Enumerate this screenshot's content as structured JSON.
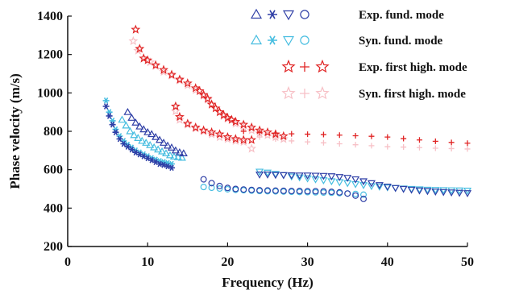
{
  "chart_data": {
    "type": "scatter",
    "xlabel": "Frequency (Hz)",
    "ylabel": "Phase velocity (m/s)",
    "xlim": [
      0,
      50
    ],
    "ylim": [
      200,
      1400
    ],
    "xticks": [
      0,
      10,
      20,
      30,
      40,
      50
    ],
    "yticks": [
      200,
      400,
      600,
      800,
      1000,
      1200,
      1400
    ],
    "grid": false,
    "legend_position": "top-right",
    "colors": {
      "exp_fund": "#2f3fa6",
      "syn_fund": "#46bde0",
      "exp_high": "#e02424",
      "syn_high": "#f7c0c6"
    },
    "legend": [
      {
        "label": "Exp. fund. mode",
        "color_key": "exp_fund",
        "markers": [
          "triangle-up",
          "asterisk",
          "triangle-down",
          "circle"
        ]
      },
      {
        "label": "Syn. fund. mode",
        "color_key": "syn_fund",
        "markers": [
          "triangle-up",
          "asterisk",
          "triangle-down",
          "circle"
        ]
      },
      {
        "label": "Exp. first high. mode",
        "color_key": "exp_high",
        "markers": [
          "star",
          "plus",
          "star"
        ]
      },
      {
        "label": "Syn. first high. mode",
        "color_key": "syn_high",
        "markers": [
          "star",
          "plus",
          "star"
        ]
      }
    ],
    "series": [
      {
        "group": "syn_high",
        "marker": "star",
        "x": [
          8.2,
          8.8,
          9.5,
          10.3,
          11,
          12,
          13,
          14,
          15,
          16,
          17,
          17.5,
          18,
          18.5,
          19,
          19.5,
          20,
          21,
          22,
          23,
          24,
          25,
          26,
          27
        ],
        "y": [
          1270,
          1220,
          1180,
          1160,
          1140,
          1110,
          1090,
          1065,
          1040,
          1015,
          985,
          965,
          940,
          920,
          900,
          880,
          865,
          840,
          820,
          805,
          790,
          780,
          770,
          760
        ]
      },
      {
        "group": "exp_high",
        "marker": "star",
        "x": [
          8.5,
          9,
          9.5,
          10,
          11,
          12,
          13,
          14,
          15,
          16,
          16.5,
          17,
          17.5,
          18,
          18.5,
          19,
          19.5,
          20,
          20.5,
          21,
          22,
          23,
          24,
          25,
          26,
          27
        ],
        "y": [
          1330,
          1230,
          1180,
          1170,
          1145,
          1120,
          1095,
          1070,
          1050,
          1025,
          1010,
          990,
          970,
          940,
          920,
          900,
          885,
          870,
          860,
          850,
          835,
          820,
          805,
          795,
          785,
          775
        ]
      },
      {
        "group": "syn_high",
        "marker": "star",
        "x": [
          13.5,
          14,
          15,
          16,
          17,
          18,
          19,
          20,
          21,
          22,
          23
        ],
        "y": [
          905,
          860,
          835,
          815,
          800,
          785,
          770,
          760,
          750,
          745,
          710
        ]
      },
      {
        "group": "exp_high",
        "marker": "star",
        "x": [
          13.5,
          14,
          15,
          16,
          17,
          18,
          19,
          20,
          21,
          22,
          23
        ],
        "y": [
          930,
          875,
          840,
          820,
          805,
          795,
          785,
          770,
          760,
          755,
          755
        ]
      },
      {
        "group": "syn_high",
        "marker": "plus",
        "x": [
          24,
          26,
          28,
          30,
          32,
          34,
          36,
          38,
          40,
          42,
          44,
          46,
          48,
          50
        ],
        "y": [
          770,
          760,
          750,
          745,
          740,
          735,
          730,
          725,
          720,
          718,
          715,
          712,
          710,
          708
        ]
      },
      {
        "group": "exp_high",
        "marker": "plus",
        "x": [
          22,
          24,
          26,
          28,
          30,
          32,
          34,
          36,
          38,
          40,
          42,
          44,
          46,
          48,
          50
        ],
        "y": [
          800,
          795,
          790,
          787,
          785,
          783,
          780,
          777,
          774,
          770,
          762,
          755,
          748,
          742,
          738
        ]
      },
      {
        "group": "syn_fund",
        "marker": "asterisk",
        "x": [
          4.8,
          5.2,
          5.6,
          6,
          6.5,
          7,
          7.5,
          8,
          8.5,
          9,
          9.5,
          10,
          10.5,
          11,
          11.5,
          12,
          12.5,
          13
        ],
        "y": [
          960,
          900,
          855,
          810,
          775,
          750,
          730,
          715,
          700,
          690,
          680,
          670,
          660,
          652,
          645,
          640,
          635,
          630
        ]
      },
      {
        "group": "exp_fund",
        "marker": "asterisk",
        "x": [
          4.8,
          5.2,
          5.6,
          6,
          6.5,
          7,
          7.5,
          8,
          8.5,
          9,
          9.5,
          10,
          10.5,
          11,
          11.5,
          12,
          12.5,
          13
        ],
        "y": [
          930,
          880,
          835,
          795,
          760,
          735,
          720,
          705,
          690,
          680,
          670,
          660,
          650,
          640,
          630,
          625,
          618,
          610
        ]
      },
      {
        "group": "syn_fund",
        "marker": "triangle-up",
        "x": [
          6.8,
          7.3,
          7.8,
          8.3,
          8.8,
          9.3,
          9.8,
          10.3,
          10.8,
          11.3,
          11.8,
          12.3,
          12.8,
          13.3,
          13.8,
          14.3
        ],
        "y": [
          860,
          830,
          800,
          780,
          765,
          750,
          740,
          728,
          716,
          705,
          695,
          685,
          675,
          668,
          665,
          662
        ]
      },
      {
        "group": "exp_fund",
        "marker": "triangle-up",
        "x": [
          7.5,
          8,
          8.5,
          9,
          9.5,
          10,
          10.5,
          11,
          11.5,
          12,
          12.5,
          13,
          13.5,
          14,
          14.5
        ],
        "y": [
          900,
          870,
          845,
          825,
          810,
          795,
          785,
          770,
          755,
          740,
          725,
          715,
          700,
          690,
          685
        ]
      },
      {
        "group": "syn_fund",
        "marker": "triangle-down",
        "x": [
          24,
          25,
          26,
          27,
          28,
          29,
          30,
          31,
          32,
          33,
          34,
          35,
          36,
          37,
          38,
          39,
          40,
          41,
          42,
          43,
          44,
          45,
          46,
          47,
          48,
          49,
          50
        ],
        "y": [
          590,
          585,
          578,
          572,
          565,
          560,
          555,
          550,
          545,
          540,
          535,
          530,
          525,
          520,
          515,
          512,
          508,
          505,
          502,
          500,
          498,
          496,
          495,
          494,
          493,
          492,
          491
        ]
      },
      {
        "group": "exp_fund",
        "marker": "triangle-down",
        "x": [
          24,
          25,
          26,
          27,
          28,
          29,
          30,
          31,
          32,
          33,
          34,
          35,
          36,
          37,
          38,
          39,
          40,
          41,
          42,
          43,
          44,
          45,
          46,
          47,
          48,
          49,
          50
        ],
        "y": [
          575,
          575,
          573,
          572,
          571,
          570,
          570,
          569,
          568,
          566,
          562,
          558,
          550,
          540,
          530,
          520,
          512,
          505,
          500,
          496,
          492,
          489,
          486,
          484,
          482,
          480,
          478
        ]
      },
      {
        "group": "syn_fund",
        "marker": "circle",
        "x": [
          17,
          18,
          19,
          20,
          21,
          22,
          23,
          24,
          25,
          26,
          27,
          28,
          29,
          30,
          31,
          32,
          33,
          34,
          35,
          36,
          37
        ],
        "y": [
          510,
          506,
          502,
          498,
          495,
          493,
          491,
          489,
          488,
          487,
          486,
          485,
          484,
          483,
          482,
          481,
          480,
          478,
          476,
          474,
          470
        ]
      },
      {
        "group": "exp_fund",
        "marker": "circle",
        "x": [
          17,
          18,
          19,
          20,
          21,
          22,
          23,
          24,
          25,
          26,
          27,
          28,
          29,
          30,
          31,
          32,
          33,
          34,
          35,
          36,
          37
        ],
        "y": [
          550,
          530,
          515,
          505,
          500,
          497,
          495,
          493,
          492,
          491,
          490,
          489,
          489,
          488,
          488,
          487,
          485,
          482,
          476,
          465,
          448
        ]
      }
    ]
  }
}
